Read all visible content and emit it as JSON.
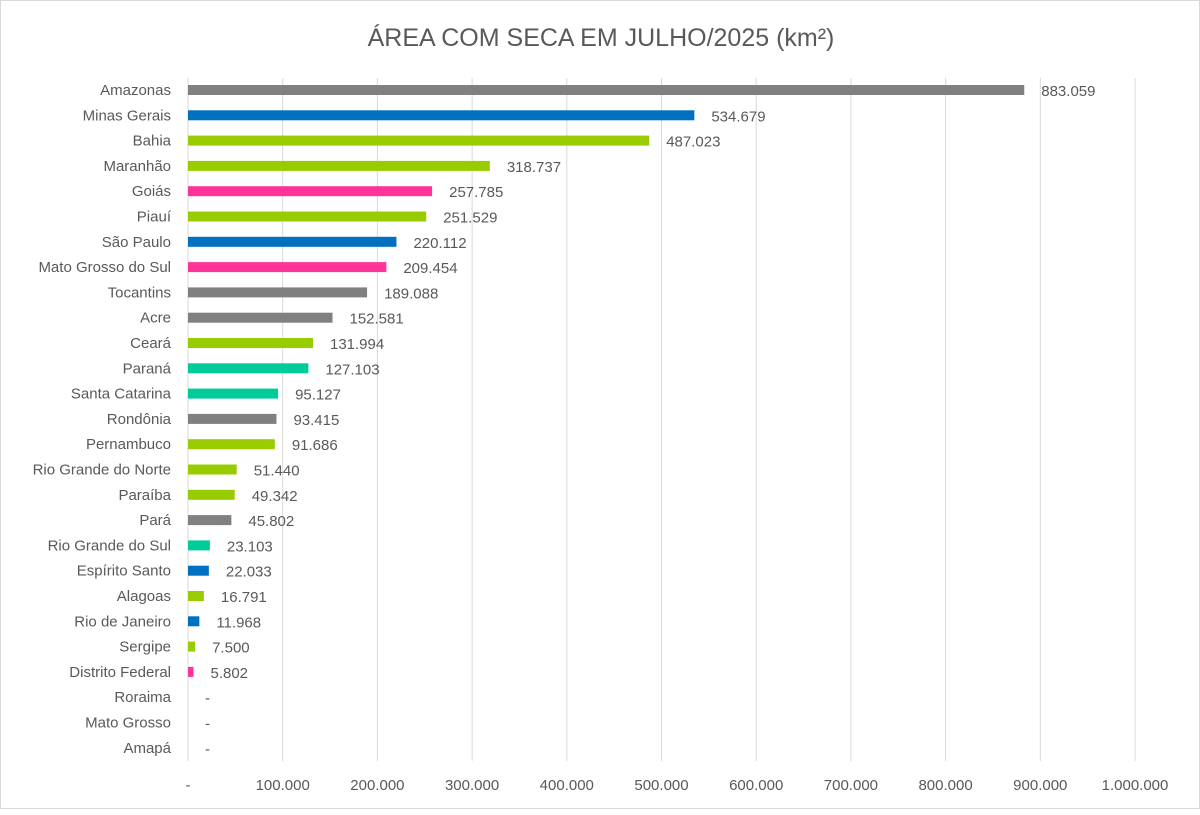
{
  "chart_data": {
    "type": "bar",
    "orientation": "horizontal",
    "title": "ÁREA COM SECA EM JULHO/2025 (km²)",
    "xlabel": "",
    "ylabel": "",
    "xlim": [
      0,
      1000000
    ],
    "x_ticks": [
      0,
      100000,
      200000,
      300000,
      400000,
      500000,
      600000,
      700000,
      800000,
      900000,
      1000000
    ],
    "x_tick_labels": [
      "-",
      "100.000",
      "200.000",
      "300.000",
      "400.000",
      "500.000",
      "600.000",
      "700.000",
      "800.000",
      "900.000",
      "1.000.000"
    ],
    "grid": "vertical",
    "legend": "none",
    "colors": {
      "gray": "#808080",
      "blue": "#0070C0",
      "green": "#99CC00",
      "pink": "#FF3399",
      "teal": "#00CC99"
    },
    "categories": [
      "Amazonas",
      "Minas Gerais",
      "Bahia",
      "Maranhão",
      "Goiás",
      "Piauí",
      "São Paulo",
      "Mato Grosso do Sul",
      "Tocantins",
      "Acre",
      "Ceará",
      "Paraná",
      "Santa Catarina",
      "Rondônia",
      "Pernambuco",
      "Rio Grande do Norte",
      "Paraíba",
      "Pará",
      "Rio Grande do Sul",
      "Espírito Santo",
      "Alagoas",
      "Rio de Janeiro",
      "Sergipe",
      "Distrito Federal",
      "Roraima",
      "Mato Grosso",
      "Amapá"
    ],
    "values": [
      883059,
      534679,
      487023,
      318737,
      257785,
      251529,
      220112,
      209454,
      189088,
      152581,
      131994,
      127103,
      95127,
      93415,
      91686,
      51440,
      49342,
      45802,
      23103,
      22033,
      16791,
      11968,
      7500,
      5802,
      0,
      0,
      0
    ],
    "data_labels": [
      "883.059",
      "534.679",
      "487.023",
      "318.737",
      "257.785",
      "251.529",
      "220.112",
      "209.454",
      "189.088",
      "152.581",
      "131.994",
      "127.103",
      "95.127",
      "93.415",
      "91.686",
      "51.440",
      "49.342",
      "45.802",
      "23.103",
      "22.033",
      "16.791",
      "11.968",
      "7.500",
      "5.802",
      "-",
      "-",
      "-"
    ],
    "bar_colors": [
      "gray",
      "blue",
      "green",
      "green",
      "pink",
      "green",
      "blue",
      "pink",
      "gray",
      "gray",
      "green",
      "teal",
      "teal",
      "gray",
      "green",
      "green",
      "green",
      "gray",
      "teal",
      "blue",
      "green",
      "blue",
      "green",
      "pink",
      "gray",
      "gray",
      "gray"
    ]
  }
}
